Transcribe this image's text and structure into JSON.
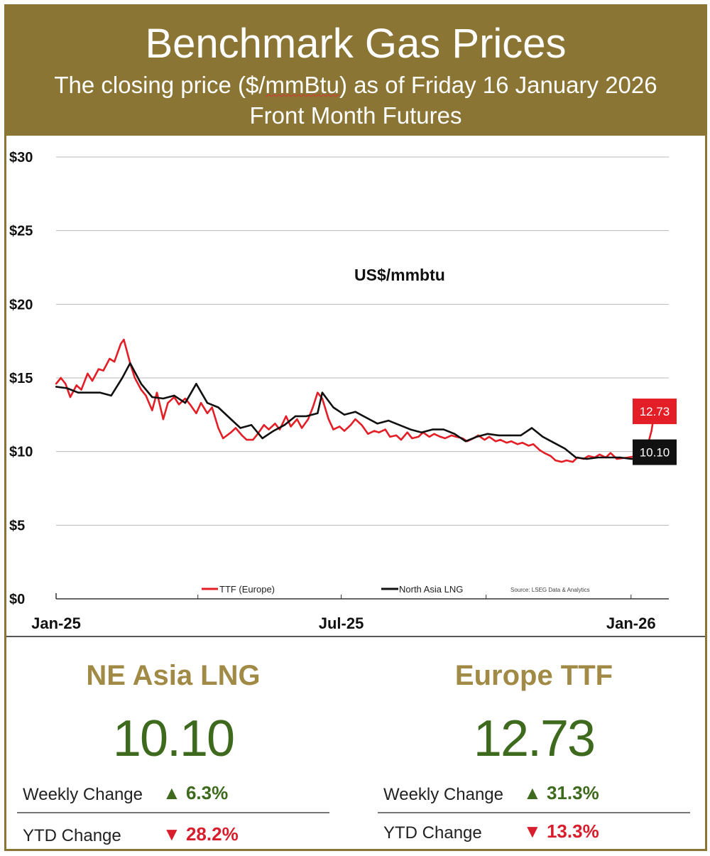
{
  "header": {
    "title": "Benchmark Gas Prices",
    "subtitle_pre": "The closing price ($/",
    "subtitle_unit": "mmBtu",
    "subtitle_post": ") as of Friday 16 January 2026",
    "subtitle2": "Front Month  Futures"
  },
  "chart_data": {
    "type": "line",
    "annotation": "US$/mmbtu",
    "source": "Source: LSEG Data & Analytics",
    "y_ticks": [
      "$30",
      "$25",
      "$20",
      "$15",
      "$10",
      "$5",
      "$0"
    ],
    "ylim": [
      0,
      30
    ],
    "x_ticks": [
      "Jan-25",
      "Jul-25",
      "Jan-26"
    ],
    "xlim": [
      "2025-01-01",
      "2026-01-25"
    ],
    "grid": true,
    "legend_position": "bottom",
    "series": [
      {
        "name": "TTF (Europe)",
        "color": "#e31e26",
        "end_label": "12.73",
        "points": [
          [
            "2025-01-01",
            14.6
          ],
          [
            "2025-01-04",
            15.0
          ],
          [
            "2025-01-07",
            14.6
          ],
          [
            "2025-01-10",
            13.7
          ],
          [
            "2025-01-14",
            14.5
          ],
          [
            "2025-01-17",
            14.2
          ],
          [
            "2025-01-21",
            15.3
          ],
          [
            "2025-01-24",
            14.8
          ],
          [
            "2025-01-28",
            15.6
          ],
          [
            "2025-01-31",
            15.5
          ],
          [
            "2025-02-04",
            16.3
          ],
          [
            "2025-02-07",
            16.1
          ],
          [
            "2025-02-11",
            17.3
          ],
          [
            "2025-02-13",
            17.6
          ],
          [
            "2025-02-17",
            16.0
          ],
          [
            "2025-02-20",
            15.0
          ],
          [
            "2025-02-24",
            14.2
          ],
          [
            "2025-02-27",
            13.8
          ],
          [
            "2025-03-03",
            12.8
          ],
          [
            "2025-03-06",
            14.0
          ],
          [
            "2025-03-10",
            12.2
          ],
          [
            "2025-03-13",
            13.3
          ],
          [
            "2025-03-17",
            13.7
          ],
          [
            "2025-03-20",
            13.2
          ],
          [
            "2025-03-24",
            13.6
          ],
          [
            "2025-03-27",
            13.2
          ],
          [
            "2025-03-31",
            12.6
          ],
          [
            "2025-04-03",
            13.3
          ],
          [
            "2025-04-07",
            12.6
          ],
          [
            "2025-04-10",
            13.0
          ],
          [
            "2025-04-14",
            11.6
          ],
          [
            "2025-04-17",
            10.9
          ],
          [
            "2025-04-22",
            11.3
          ],
          [
            "2025-04-25",
            11.6
          ],
          [
            "2025-04-29",
            11.1
          ],
          [
            "2025-05-02",
            10.8
          ],
          [
            "2025-05-06",
            10.8
          ],
          [
            "2025-05-09",
            11.2
          ],
          [
            "2025-05-13",
            11.8
          ],
          [
            "2025-05-16",
            11.5
          ],
          [
            "2025-05-20",
            11.9
          ],
          [
            "2025-05-23",
            11.5
          ],
          [
            "2025-05-27",
            12.4
          ],
          [
            "2025-05-30",
            11.7
          ],
          [
            "2025-06-03",
            12.2
          ],
          [
            "2025-06-06",
            11.6
          ],
          [
            "2025-06-10",
            12.2
          ],
          [
            "2025-06-13",
            13.0
          ],
          [
            "2025-06-16",
            14.0
          ],
          [
            "2025-06-19",
            13.6
          ],
          [
            "2025-06-23",
            12.2
          ],
          [
            "2025-06-26",
            11.5
          ],
          [
            "2025-06-30",
            11.7
          ],
          [
            "2025-07-03",
            11.4
          ],
          [
            "2025-07-07",
            11.8
          ],
          [
            "2025-07-10",
            12.2
          ],
          [
            "2025-07-14",
            11.8
          ],
          [
            "2025-07-18",
            11.2
          ],
          [
            "2025-07-22",
            11.4
          ],
          [
            "2025-07-25",
            11.3
          ],
          [
            "2025-07-29",
            11.5
          ],
          [
            "2025-08-01",
            11.0
          ],
          [
            "2025-08-05",
            11.1
          ],
          [
            "2025-08-08",
            10.8
          ],
          [
            "2025-08-12",
            11.3
          ],
          [
            "2025-08-15",
            10.9
          ],
          [
            "2025-08-19",
            11.0
          ],
          [
            "2025-08-22",
            11.3
          ],
          [
            "2025-08-26",
            11.0
          ],
          [
            "2025-08-29",
            11.2
          ],
          [
            "2025-09-02",
            11.0
          ],
          [
            "2025-09-05",
            10.9
          ],
          [
            "2025-09-09",
            11.1
          ],
          [
            "2025-09-12",
            11.0
          ],
          [
            "2025-09-16",
            10.9
          ],
          [
            "2025-09-19",
            10.7
          ],
          [
            "2025-09-23",
            10.9
          ],
          [
            "2025-09-26",
            11.1
          ],
          [
            "2025-09-30",
            10.8
          ],
          [
            "2025-10-03",
            11.0
          ],
          [
            "2025-10-07",
            10.7
          ],
          [
            "2025-10-10",
            10.8
          ],
          [
            "2025-10-14",
            10.6
          ],
          [
            "2025-10-17",
            10.7
          ],
          [
            "2025-10-21",
            10.5
          ],
          [
            "2025-10-24",
            10.6
          ],
          [
            "2025-10-28",
            10.4
          ],
          [
            "2025-10-31",
            10.5
          ],
          [
            "2025-11-04",
            10.1
          ],
          [
            "2025-11-07",
            9.9
          ],
          [
            "2025-11-11",
            9.7
          ],
          [
            "2025-11-14",
            9.4
          ],
          [
            "2025-11-18",
            9.3
          ],
          [
            "2025-11-21",
            9.4
          ],
          [
            "2025-11-25",
            9.3
          ],
          [
            "2025-11-28",
            9.6
          ],
          [
            "2025-12-02",
            9.5
          ],
          [
            "2025-12-05",
            9.7
          ],
          [
            "2025-12-09",
            9.6
          ],
          [
            "2025-12-12",
            9.8
          ],
          [
            "2025-12-16",
            9.6
          ],
          [
            "2025-12-19",
            9.9
          ],
          [
            "2025-12-23",
            9.5
          ],
          [
            "2025-12-30",
            9.6
          ],
          [
            "2026-01-05",
            9.7
          ],
          [
            "2026-01-09",
            9.7
          ],
          [
            "2026-01-12",
            10.6
          ],
          [
            "2026-01-14",
            11.4
          ],
          [
            "2026-01-16",
            12.73
          ]
        ]
      },
      {
        "name": "North Asia LNG",
        "color": "#111111",
        "end_label": "10.10",
        "points": [
          [
            "2025-01-01",
            14.4
          ],
          [
            "2025-01-08",
            14.3
          ],
          [
            "2025-01-15",
            14.0
          ],
          [
            "2025-01-22",
            14.0
          ],
          [
            "2025-01-29",
            14.0
          ],
          [
            "2025-02-05",
            13.8
          ],
          [
            "2025-02-12",
            15.0
          ],
          [
            "2025-02-17",
            16.0
          ],
          [
            "2025-02-24",
            14.6
          ],
          [
            "2025-03-03",
            13.7
          ],
          [
            "2025-03-10",
            13.6
          ],
          [
            "2025-03-17",
            13.8
          ],
          [
            "2025-03-24",
            13.3
          ],
          [
            "2025-03-31",
            14.6
          ],
          [
            "2025-04-07",
            13.3
          ],
          [
            "2025-04-14",
            13.0
          ],
          [
            "2025-04-21",
            12.3
          ],
          [
            "2025-04-28",
            11.6
          ],
          [
            "2025-05-05",
            11.8
          ],
          [
            "2025-05-12",
            10.9
          ],
          [
            "2025-05-19",
            11.4
          ],
          [
            "2025-05-26",
            11.8
          ],
          [
            "2025-06-02",
            12.4
          ],
          [
            "2025-06-09",
            12.4
          ],
          [
            "2025-06-16",
            12.6
          ],
          [
            "2025-06-19",
            14.0
          ],
          [
            "2025-06-26",
            13.0
          ],
          [
            "2025-07-03",
            12.5
          ],
          [
            "2025-07-10",
            12.7
          ],
          [
            "2025-07-17",
            12.3
          ],
          [
            "2025-07-24",
            11.9
          ],
          [
            "2025-07-31",
            12.1
          ],
          [
            "2025-08-07",
            11.8
          ],
          [
            "2025-08-14",
            11.5
          ],
          [
            "2025-08-21",
            11.3
          ],
          [
            "2025-08-28",
            11.5
          ],
          [
            "2025-09-04",
            11.5
          ],
          [
            "2025-09-11",
            11.2
          ],
          [
            "2025-09-18",
            10.7
          ],
          [
            "2025-09-25",
            11.0
          ],
          [
            "2025-10-02",
            11.2
          ],
          [
            "2025-10-09",
            11.1
          ],
          [
            "2025-10-16",
            11.1
          ],
          [
            "2025-10-23",
            11.1
          ],
          [
            "2025-10-30",
            11.6
          ],
          [
            "2025-11-06",
            11.0
          ],
          [
            "2025-11-13",
            10.6
          ],
          [
            "2025-11-20",
            10.2
          ],
          [
            "2025-11-27",
            9.6
          ],
          [
            "2025-12-04",
            9.5
          ],
          [
            "2025-12-11",
            9.6
          ],
          [
            "2025-12-18",
            9.6
          ],
          [
            "2025-12-25",
            9.6
          ],
          [
            "2026-01-01",
            9.5
          ],
          [
            "2026-01-09",
            9.5
          ],
          [
            "2026-01-16",
            10.1
          ]
        ]
      }
    ]
  },
  "panels": {
    "asia": {
      "title": "NE Asia LNG",
      "value": "10.10",
      "weekly_label": "Weekly Change",
      "weekly_arrow": "▲",
      "weekly_value": "6.3%",
      "ytd_label": "YTD Change",
      "ytd_arrow": "▼",
      "ytd_value": "28.2%"
    },
    "europe": {
      "title": "Europe TTF",
      "value": "12.73",
      "weekly_label": "Weekly Change",
      "weekly_arrow": "▲",
      "weekly_value": "31.3%",
      "ytd_label": "YTD Change",
      "ytd_arrow": "▼",
      "ytd_value": "13.3%"
    }
  },
  "colors": {
    "gold": "#8a7535",
    "green": "#3d6a1c",
    "red": "#d81e2c"
  }
}
